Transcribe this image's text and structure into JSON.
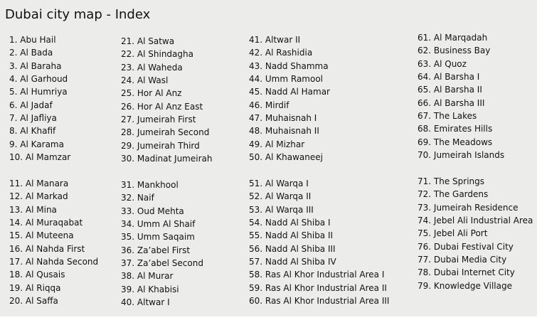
{
  "title": "Dubai city map - Index",
  "columns": [
    [
      [
        "1. Abu Hail",
        "2. Al Bada",
        "3. Al Baraha",
        "4. Al Garhoud",
        "5. Al Humriya",
        "6. Al Jadaf",
        "7. Al Jafliya",
        "8. Al Khafif",
        "9. Al Karama",
        "10. Al Mamzar"
      ],
      [
        "11. Al Manara",
        "12. Al Markad",
        "13. Al Mina",
        "14. Al Muraqabat",
        "15. Al Muteena",
        "16. Al Nahda First",
        "17. Al Nahda Second",
        "18. Al Qusais",
        "19. Al Riqqa",
        "20. Al Saffa"
      ]
    ],
    [
      [
        "21. Al Satwa",
        "22. Al Shindagha",
        "23. Al Waheda",
        "24. Al Wasl",
        "25. Hor Al Anz",
        "26. Hor Al Anz East",
        "27. Jumeirah First",
        "28. Jumeirah Second",
        "29. Jumeirah Third",
        "30. Madinat Jumeirah"
      ],
      [
        "31. Mankhool",
        "32. Naif",
        "33. Oud Mehta",
        "34. Umm Al Shaif",
        "35. Umm Saqaim",
        "36. Za’abel First",
        "37. Za’abel Second",
        "38. Al Murar",
        "39. Al Khabisi",
        "40. Altwar I"
      ]
    ],
    [
      [
        "41. Altwar II",
        "42. Al Rashidia",
        "43. Nadd Shamma",
        "44. Umm Ramool",
        "45. Nadd Al Hamar",
        "46. Mirdif",
        "47. Muhaisnah I",
        "48. Muhaisnah II",
        "49. Al Mizhar",
        "50. Al Khawaneej"
      ],
      [
        "51. Al Warqa I",
        "52. Al Warqa II",
        "53. Al Warqa III",
        "54. Nadd Al Shiba I",
        "55. Nadd Al Shiba II",
        "56. Nadd Al Shiba III",
        "57. Nadd Al Shiba IV",
        "58. Ras Al Khor Industrial Area I",
        "59. Ras Al Khor Industrial Area II",
        "60. Ras Al Khor Industrial Area III"
      ]
    ],
    [
      [
        "61. Al Marqadah",
        "62. Business Bay",
        "63. Al Quoz",
        "64. Al Barsha I",
        "65. Al Barsha II",
        "66. Al Barsha III",
        "67. The Lakes",
        "68. Emirates Hills",
        "69. The Meadows",
        "70. Jumeirah Islands"
      ],
      [
        "71. The Springs",
        "72. The Gardens",
        "73. Jumeirah Residence",
        "74. Jebel Ali Industrial Area",
        "75. Jebel Ali Port",
        "76. Dubai Festival City",
        "77. Dubai Media City",
        "78. Dubai Internet City",
        "79. Knowledge Village"
      ]
    ]
  ]
}
